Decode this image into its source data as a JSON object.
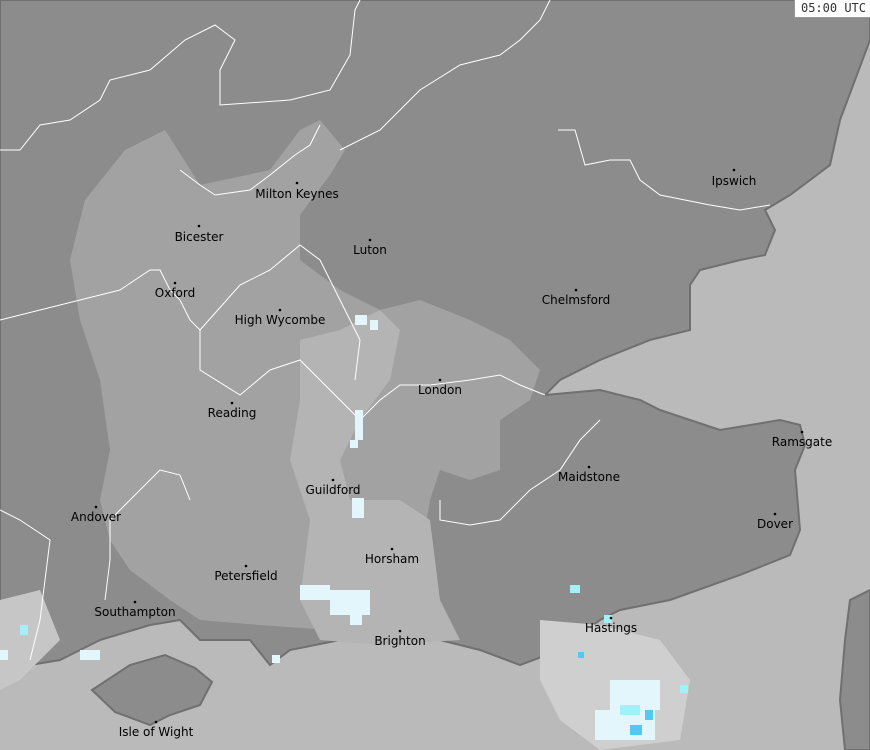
{
  "timestamp": "05:00 UTC",
  "colors": {
    "land": "#8c8c8c",
    "land_light": "#a2a2a2",
    "sea": "#bababa",
    "radar_faint": "#cfcfcf",
    "radar_light": "#e2f6fb",
    "radar_medium": "#a4f0f8",
    "radar_strong": "#52c8f2",
    "boundary": "#ffffff"
  },
  "cities": [
    "Milton Keynes",
    "Bicester",
    "Luton",
    "Ipswich",
    "Oxford",
    "High Wycombe",
    "Chelmsford",
    "London",
    "Reading",
    "Ramsgate",
    "Guildford",
    "Maidstone",
    "Andover",
    "Dover",
    "Horsham",
    "Petersfield",
    "Southampton",
    "Brighton",
    "Hastings",
    "Isle of Wight"
  ]
}
